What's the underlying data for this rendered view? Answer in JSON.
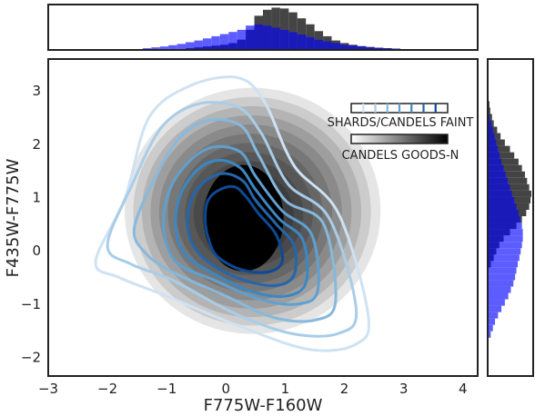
{
  "chart_data": {
    "type": "contour-density",
    "xlabel": "F775W-F160W",
    "ylabel": "F435W-F775W",
    "xlim": [
      -3,
      4.25
    ],
    "ylim": [
      -2.35,
      3.6
    ],
    "xticks": [
      "−3",
      "−2",
      "−1",
      "0",
      "1",
      "2",
      "3",
      "4"
    ],
    "yticks": [
      "−2",
      "−1",
      "0",
      "1",
      "2",
      "3"
    ],
    "xtick_values": [
      -3,
      -2,
      -1,
      0,
      1,
      2,
      3,
      4
    ],
    "ytick_values": [
      -2,
      -1,
      0,
      1,
      2,
      3
    ],
    "grid": false,
    "legend": {
      "placement": "top-right",
      "entries": [
        "SHARDS/CANDELS FAINT",
        "CANDELS GOODS-N"
      ]
    },
    "colors": {
      "faint_contours": [
        "#cfe2f3",
        "#a9cde8",
        "#86b9dd",
        "#5fa0d0",
        "#3c87c3",
        "#2466ad",
        "#0d4a96"
      ],
      "goodsn_density": "#000000",
      "hist_goodsn": "#444444",
      "hist_faint_light": "#5c5cff",
      "hist_faint_dark": "#1a1ab8"
    },
    "series": [
      {
        "name": "CANDELS GOODS-N",
        "kind": "density",
        "center": [
          0.45,
          0.75
        ],
        "spread": [
          0.9,
          1.05
        ]
      },
      {
        "name": "SHARDS/CANDELS FAINT",
        "kind": "contours",
        "levels": [
          [
            [
              -2.2,
              -0.2
            ],
            [
              -1.7,
              1.0
            ],
            [
              -1.3,
              2.5
            ],
            [
              -0.6,
              3.1
            ],
            [
              0.2,
              3.25
            ],
            [
              0.65,
              2.8
            ],
            [
              1.15,
              1.6
            ],
            [
              1.9,
              0.7
            ],
            [
              2.4,
              -1.2
            ],
            [
              2.2,
              -1.75
            ],
            [
              1.4,
              -1.85
            ],
            [
              0.2,
              -1.4
            ],
            [
              -1.0,
              -0.85
            ],
            [
              -1.8,
              -0.5
            ]
          ],
          [
            [
              -2.0,
              0.1
            ],
            [
              -1.6,
              1.2
            ],
            [
              -1.1,
              2.3
            ],
            [
              -0.5,
              2.75
            ],
            [
              0.2,
              2.7
            ],
            [
              0.6,
              2.2
            ],
            [
              1.05,
              1.25
            ],
            [
              1.75,
              0.6
            ],
            [
              2.2,
              -1.1
            ],
            [
              1.9,
              -1.55
            ],
            [
              1.1,
              -1.55
            ],
            [
              0.1,
              -1.15
            ],
            [
              -0.9,
              -0.55
            ],
            [
              -1.6,
              -0.25
            ]
          ],
          [
            [
              -1.55,
              0.4
            ],
            [
              -1.25,
              1.25
            ],
            [
              -0.8,
              2.1
            ],
            [
              -0.3,
              2.45
            ],
            [
              0.25,
              2.35
            ],
            [
              0.55,
              1.8
            ],
            [
              1.0,
              0.95
            ],
            [
              1.65,
              0.5
            ],
            [
              1.85,
              -0.95
            ],
            [
              1.5,
              -1.3
            ],
            [
              0.8,
              -1.25
            ],
            [
              0.0,
              -0.85
            ],
            [
              -0.9,
              -0.4
            ],
            [
              -1.35,
              -0.05
            ]
          ],
          [
            [
              -1.05,
              0.45
            ],
            [
              -0.95,
              1.15
            ],
            [
              -0.6,
              1.7
            ],
            [
              -0.2,
              1.95
            ],
            [
              0.25,
              1.85
            ],
            [
              0.5,
              1.4
            ],
            [
              0.95,
              0.75
            ],
            [
              1.45,
              0.3
            ],
            [
              1.55,
              -0.75
            ],
            [
              1.2,
              -1.0
            ],
            [
              0.55,
              -0.9
            ],
            [
              -0.2,
              -0.55
            ],
            [
              -0.85,
              -0.2
            ]
          ],
          [
            [
              -0.85,
              0.5
            ],
            [
              -0.75,
              1.1
            ],
            [
              -0.45,
              1.55
            ],
            [
              -0.1,
              1.7
            ],
            [
              0.25,
              1.55
            ],
            [
              0.5,
              1.15
            ],
            [
              0.9,
              0.6
            ],
            [
              1.3,
              0.2
            ],
            [
              1.35,
              -0.6
            ],
            [
              1.0,
              -0.85
            ],
            [
              0.4,
              -0.75
            ],
            [
              -0.25,
              -0.4
            ],
            [
              -0.7,
              -0.05
            ]
          ],
          [
            [
              -0.65,
              0.55
            ],
            [
              -0.55,
              1.05
            ],
            [
              -0.3,
              1.35
            ],
            [
              0.0,
              1.45
            ],
            [
              0.3,
              1.3
            ],
            [
              0.5,
              0.95
            ],
            [
              0.85,
              0.5
            ],
            [
              1.15,
              0.1
            ],
            [
              1.15,
              -0.45
            ],
            [
              0.85,
              -0.65
            ],
            [
              0.3,
              -0.55
            ],
            [
              -0.25,
              -0.25
            ],
            [
              -0.55,
              0.1
            ]
          ],
          [
            [
              -0.35,
              0.6
            ],
            [
              -0.3,
              0.95
            ],
            [
              -0.1,
              1.15
            ],
            [
              0.15,
              1.2
            ],
            [
              0.35,
              1.0
            ],
            [
              0.55,
              0.7
            ],
            [
              0.85,
              0.3
            ],
            [
              0.95,
              -0.2
            ],
            [
              0.7,
              -0.4
            ],
            [
              0.25,
              -0.35
            ],
            [
              -0.15,
              -0.1
            ],
            [
              -0.3,
              0.25
            ]
          ]
        ]
      }
    ],
    "top_histogram": {
      "bin_edges_start": -3,
      "bin_width": 0.145,
      "goodsn": [
        0,
        0,
        0,
        0,
        0,
        0,
        0,
        0,
        0,
        0,
        0,
        0,
        0,
        0,
        0,
        0,
        0.02,
        0.04,
        0.06,
        0.08,
        0.1,
        0.14,
        0.22,
        0.45,
        0.78,
        0.92,
        0.97,
        0.95,
        0.86,
        0.72,
        0.58,
        0.42,
        0.3,
        0.2,
        0.14,
        0.1,
        0.07,
        0.05,
        0.03,
        0.02,
        0.01,
        0,
        0,
        0,
        0,
        0,
        0,
        0,
        0,
        0
      ],
      "faint": [
        0,
        0,
        0,
        0,
        0,
        0,
        0,
        0,
        0,
        0,
        0,
        0.02,
        0.04,
        0.06,
        0.09,
        0.12,
        0.16,
        0.2,
        0.25,
        0.3,
        0.35,
        0.4,
        0.45,
        0.55,
        0.58,
        0.55,
        0.5,
        0.45,
        0.4,
        0.34,
        0.28,
        0.22,
        0.18,
        0.14,
        0.1,
        0.08,
        0.06,
        0.04,
        0.03,
        0.02,
        0.01,
        0,
        0,
        0,
        0,
        0,
        0,
        0,
        0,
        0
      ]
    },
    "right_histogram": {
      "bin_edges_start": -2.35,
      "bin_width": 0.12,
      "goodsn": [
        0,
        0,
        0,
        0,
        0,
        0,
        0,
        0,
        0,
        0,
        0,
        0,
        0,
        0,
        0,
        0,
        0,
        0.05,
        0.12,
        0.18,
        0.25,
        0.35,
        0.5,
        0.65,
        0.78,
        0.88,
        0.95,
        0.98,
        1.0,
        0.95,
        0.9,
        0.85,
        0.78,
        0.7,
        0.6,
        0.5,
        0.38,
        0.28,
        0.2,
        0.12,
        0.08,
        0.04,
        0.02,
        0,
        0,
        0,
        0,
        0,
        0,
        0
      ],
      "faint": [
        0,
        0,
        0,
        0,
        0,
        0,
        0.05,
        0.1,
        0.15,
        0.22,
        0.3,
        0.38,
        0.46,
        0.52,
        0.58,
        0.62,
        0.65,
        0.68,
        0.72,
        0.75,
        0.78,
        0.8,
        0.8,
        0.78,
        0.74,
        0.7,
        0.65,
        0.6,
        0.55,
        0.5,
        0.45,
        0.4,
        0.35,
        0.3,
        0.26,
        0.22,
        0.18,
        0.14,
        0.1,
        0.06,
        0.02,
        0,
        0,
        0,
        0,
        0,
        0,
        0,
        0,
        0
      ]
    }
  }
}
